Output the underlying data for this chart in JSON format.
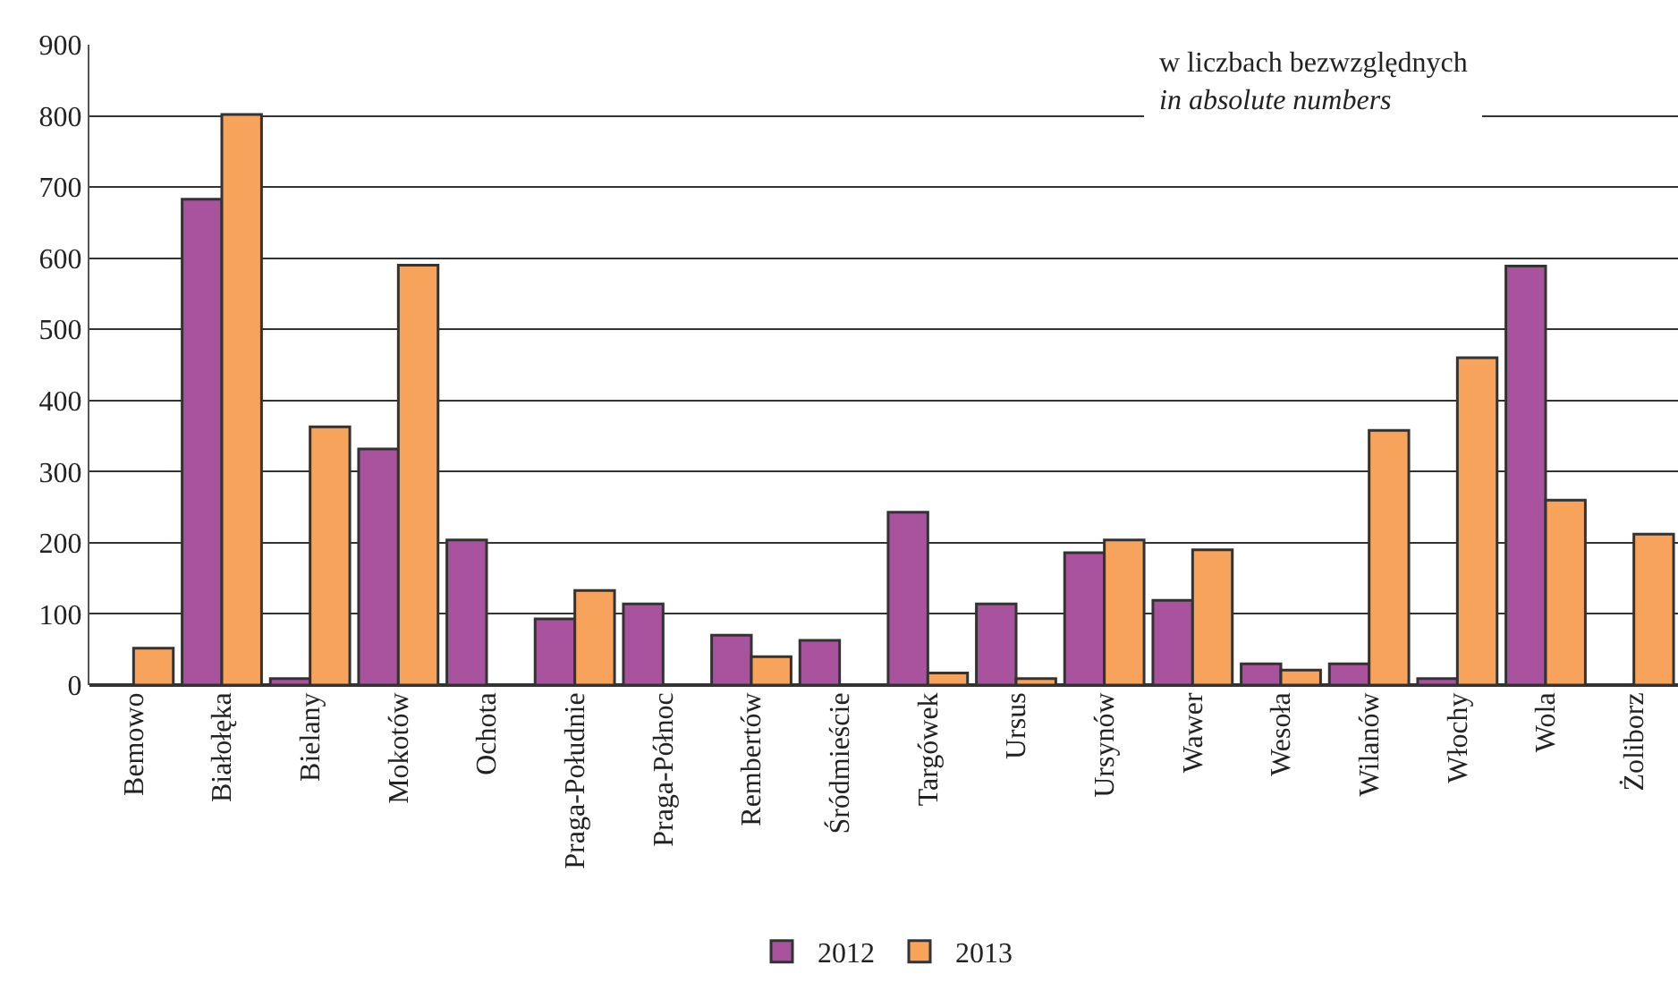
{
  "chart_data": {
    "type": "bar",
    "annotations": [
      "w liczbach bezwzględnych",
      "in absolute numbers"
    ],
    "categories": [
      "Bemowo",
      "Białołęka",
      "Bielany",
      "Mokotów",
      "Ochota",
      "Praga-Południe",
      "Praga-Północ",
      "Rembertów",
      "Śródmieście",
      "Targówek",
      "Ursus",
      "Ursynów",
      "Wawer",
      "Wesoła",
      "Wilanów",
      "Włochy",
      "Wola",
      "Żoliborz"
    ],
    "series": [
      {
        "name": "2012",
        "color": "#a9539f",
        "values": [
          null,
          683,
          9,
          332,
          204,
          93,
          114,
          70,
          63,
          243,
          114,
          186,
          119,
          30,
          30,
          9,
          589,
          null
        ]
      },
      {
        "name": "2013",
        "color": "#f7a35c",
        "values": [
          52,
          802,
          363,
          590,
          null,
          133,
          null,
          40,
          null,
          17,
          9,
          204,
          190,
          21,
          358,
          460,
          260,
          212
        ]
      }
    ],
    "ylim": [
      0,
      900
    ],
    "yticks": [
      0,
      100,
      200,
      300,
      400,
      500,
      600,
      700,
      800,
      900
    ],
    "grid": "y",
    "legend": "bottom"
  }
}
